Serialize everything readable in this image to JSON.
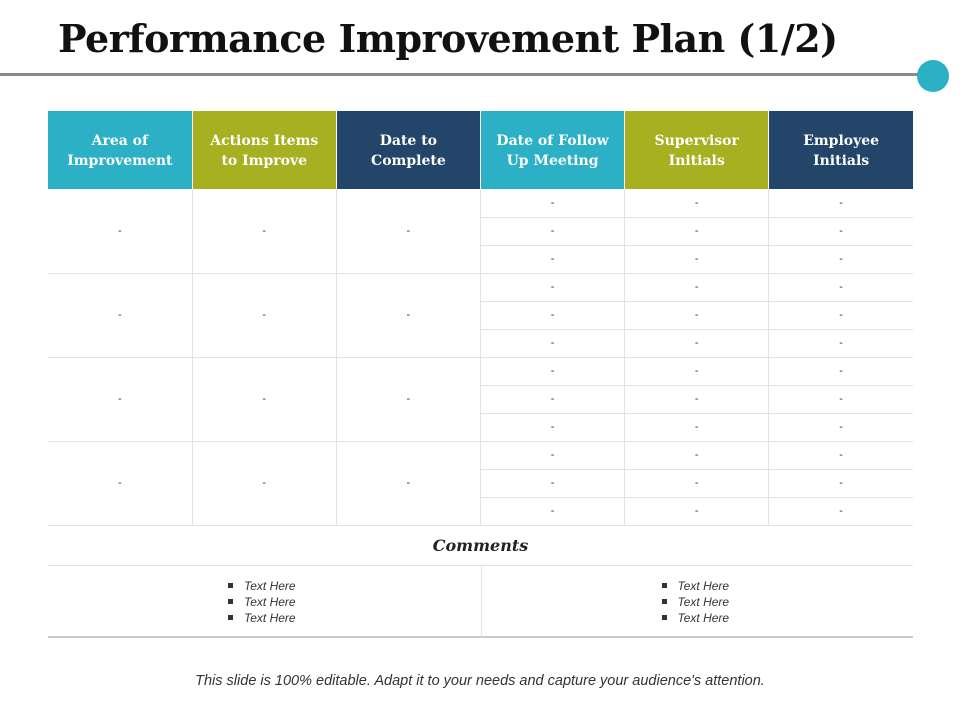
{
  "title": "Performance Improvement Plan (1/2)",
  "colors": {
    "teal": "#2bb0c5",
    "olive": "#a6b021",
    "navy": "#24456a",
    "rule": "#8a8a8a"
  },
  "table": {
    "headers": [
      {
        "line1": "Area of",
        "line2": "Improvement",
        "color": "teal"
      },
      {
        "line1": "Actions Items",
        "line2": "to Improve",
        "color": "olive"
      },
      {
        "line1": "Date to",
        "line2": "Complete",
        "color": "navy"
      },
      {
        "line1": "Date of Follow",
        "line2": "Up Meeting",
        "color": "teal"
      },
      {
        "line1": "Supervisor",
        "line2": "Initials",
        "color": "olive"
      },
      {
        "line1": "Employee",
        "line2": "Initials",
        "color": "navy"
      }
    ],
    "groups": [
      {
        "area": "-",
        "actions": "-",
        "date": "-",
        "rows": [
          {
            "followup": "-",
            "supervisor": "-",
            "employee": "-"
          },
          {
            "followup": "-",
            "supervisor": "-",
            "employee": "-"
          },
          {
            "followup": "-",
            "supervisor": "-",
            "employee": "-"
          }
        ]
      },
      {
        "area": "-",
        "actions": "-",
        "date": "-",
        "rows": [
          {
            "followup": "-",
            "supervisor": "-",
            "employee": "-"
          },
          {
            "followup": "-",
            "supervisor": "-",
            "employee": "-"
          },
          {
            "followup": "-",
            "supervisor": "-",
            "employee": "-"
          }
        ]
      },
      {
        "area": "-",
        "actions": "-",
        "date": "-",
        "rows": [
          {
            "followup": "-",
            "supervisor": "-",
            "employee": "-"
          },
          {
            "followup": "-",
            "supervisor": "-",
            "employee": "-"
          },
          {
            "followup": "-",
            "supervisor": "-",
            "employee": "-"
          }
        ]
      },
      {
        "area": "-",
        "actions": "-",
        "date": "-",
        "rows": [
          {
            "followup": "-",
            "supervisor": "-",
            "employee": "-"
          },
          {
            "followup": "-",
            "supervisor": "-",
            "employee": "-"
          },
          {
            "followup": "-",
            "supervisor": "-",
            "employee": "-"
          }
        ]
      }
    ]
  },
  "comments": {
    "title": "Comments",
    "left": [
      "Text Here",
      "Text Here",
      "Text Here"
    ],
    "right": [
      "Text Here",
      "Text Here",
      "Text Here"
    ]
  },
  "footer": "This slide is 100% editable. Adapt it to your needs and capture your audience's attention."
}
